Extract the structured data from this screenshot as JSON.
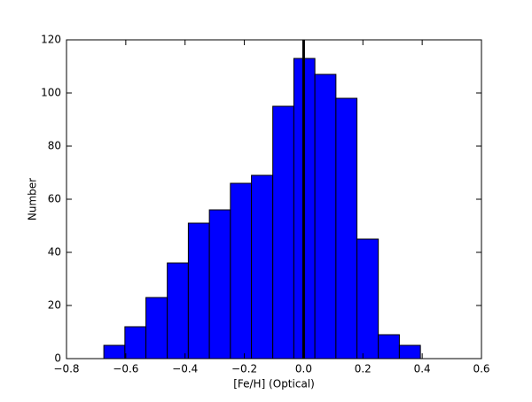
{
  "chart_data": {
    "type": "histogram",
    "x_label": "[Fe/H] (Optical)",
    "y_label": "Number",
    "bins": [
      -0.674,
      -0.603,
      -0.532,
      -0.46,
      -0.389,
      -0.318,
      -0.247,
      -0.176,
      -0.104,
      -0.033,
      0.038,
      0.109,
      0.18,
      0.252,
      0.323,
      0.394
    ],
    "values": [
      5,
      12,
      23,
      36,
      51,
      56,
      66,
      69,
      95,
      113,
      107,
      98,
      45,
      9,
      5
    ],
    "color": "#0000ff",
    "vline": 0,
    "vline_color": "#000000",
    "xlim": [
      -0.8,
      0.6
    ],
    "xticks": [
      {
        "value": -0.8,
        "label": "−0.8"
      },
      {
        "value": -0.6,
        "label": "−0.6"
      },
      {
        "value": -0.4,
        "label": "−0.4"
      },
      {
        "value": -0.2,
        "label": "−0.2"
      },
      {
        "value": 0,
        "label": "0.0"
      },
      0.2,
      0.4,
      0.6
    ],
    "ylim": [
      0,
      120
    ],
    "yticks": [
      0,
      20,
      40,
      60,
      80,
      100,
      120
    ],
    "grid": false
  }
}
